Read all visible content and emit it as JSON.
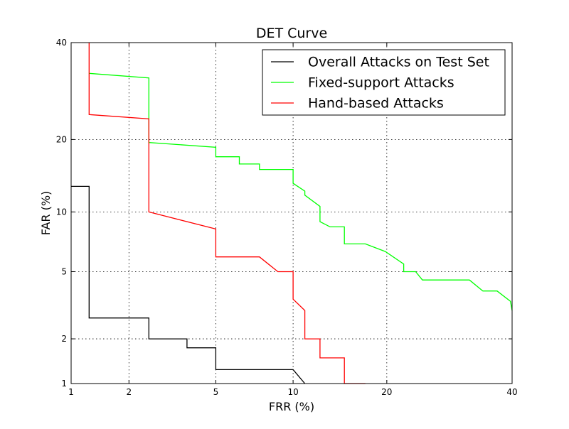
{
  "chart_data": {
    "type": "line",
    "title": "DET Curve",
    "xlabel": "FRR (%)",
    "ylabel": "FAR (%)",
    "xscale": "probit",
    "yscale": "probit",
    "xlim": [
      1,
      40
    ],
    "ylim": [
      1,
      40
    ],
    "xticks": [
      1,
      2,
      5,
      10,
      20,
      40
    ],
    "yticks": [
      1,
      2,
      5,
      10,
      20,
      40
    ],
    "xtick_labels": [
      "1",
      "2",
      "5",
      "10",
      "20",
      "40"
    ],
    "ytick_labels": [
      "1",
      "2",
      "5",
      "10",
      "20",
      "40"
    ],
    "grid": true,
    "legend_position": "top-right",
    "series": [
      {
        "name": "Overall Attacks on Test Set",
        "color": "#000000",
        "x": [
          1.0,
          1.25,
          1.25,
          2.5,
          2.5,
          3.75,
          3.75,
          5.0,
          5.0,
          10.0,
          11.0,
          11.0
        ],
        "y": [
          13.0,
          13.0,
          2.7,
          2.7,
          2.0,
          2.0,
          1.75,
          1.75,
          1.25,
          1.25,
          1.0,
          1.0
        ]
      },
      {
        "name": "Fixed-support Attacks",
        "color": "#00ff00",
        "x": [
          1.25,
          2.5,
          2.5,
          5.0,
          5.0,
          6.25,
          6.25,
          7.5,
          7.5,
          10.0,
          10.0,
          11.0,
          11.0,
          12.4,
          12.4,
          13.4,
          14.9,
          14.9,
          17.3,
          19.8,
          22.3,
          22.3,
          24.0,
          25.0,
          32.5,
          34.8,
          37.3,
          39.7,
          39.7,
          40.0
        ],
        "y": [
          33.0,
          32.0,
          19.5,
          18.7,
          17.2,
          17.2,
          16.1,
          16.1,
          15.3,
          15.3,
          13.4,
          12.4,
          11.9,
          10.6,
          9.0,
          8.5,
          8.5,
          7.0,
          7.0,
          6.4,
          5.5,
          5.0,
          5.0,
          4.5,
          4.5,
          3.9,
          3.9,
          3.4,
          3.4,
          3.0
        ]
      },
      {
        "name": "Hand-based Attacks",
        "color": "#ff0000",
        "x": [
          1.25,
          1.25,
          2.5,
          2.5,
          5.0,
          5.0,
          7.5,
          8.8,
          10.0,
          10.0,
          11.0,
          11.0,
          12.4,
          12.4,
          14.9,
          14.9,
          17.3
        ],
        "y": [
          40.0,
          24.5,
          23.7,
          10.0,
          8.3,
          6.0,
          6.0,
          5.0,
          5.0,
          3.5,
          3.0,
          2.0,
          2.0,
          1.5,
          1.5,
          1.0,
          1.0
        ]
      }
    ]
  }
}
